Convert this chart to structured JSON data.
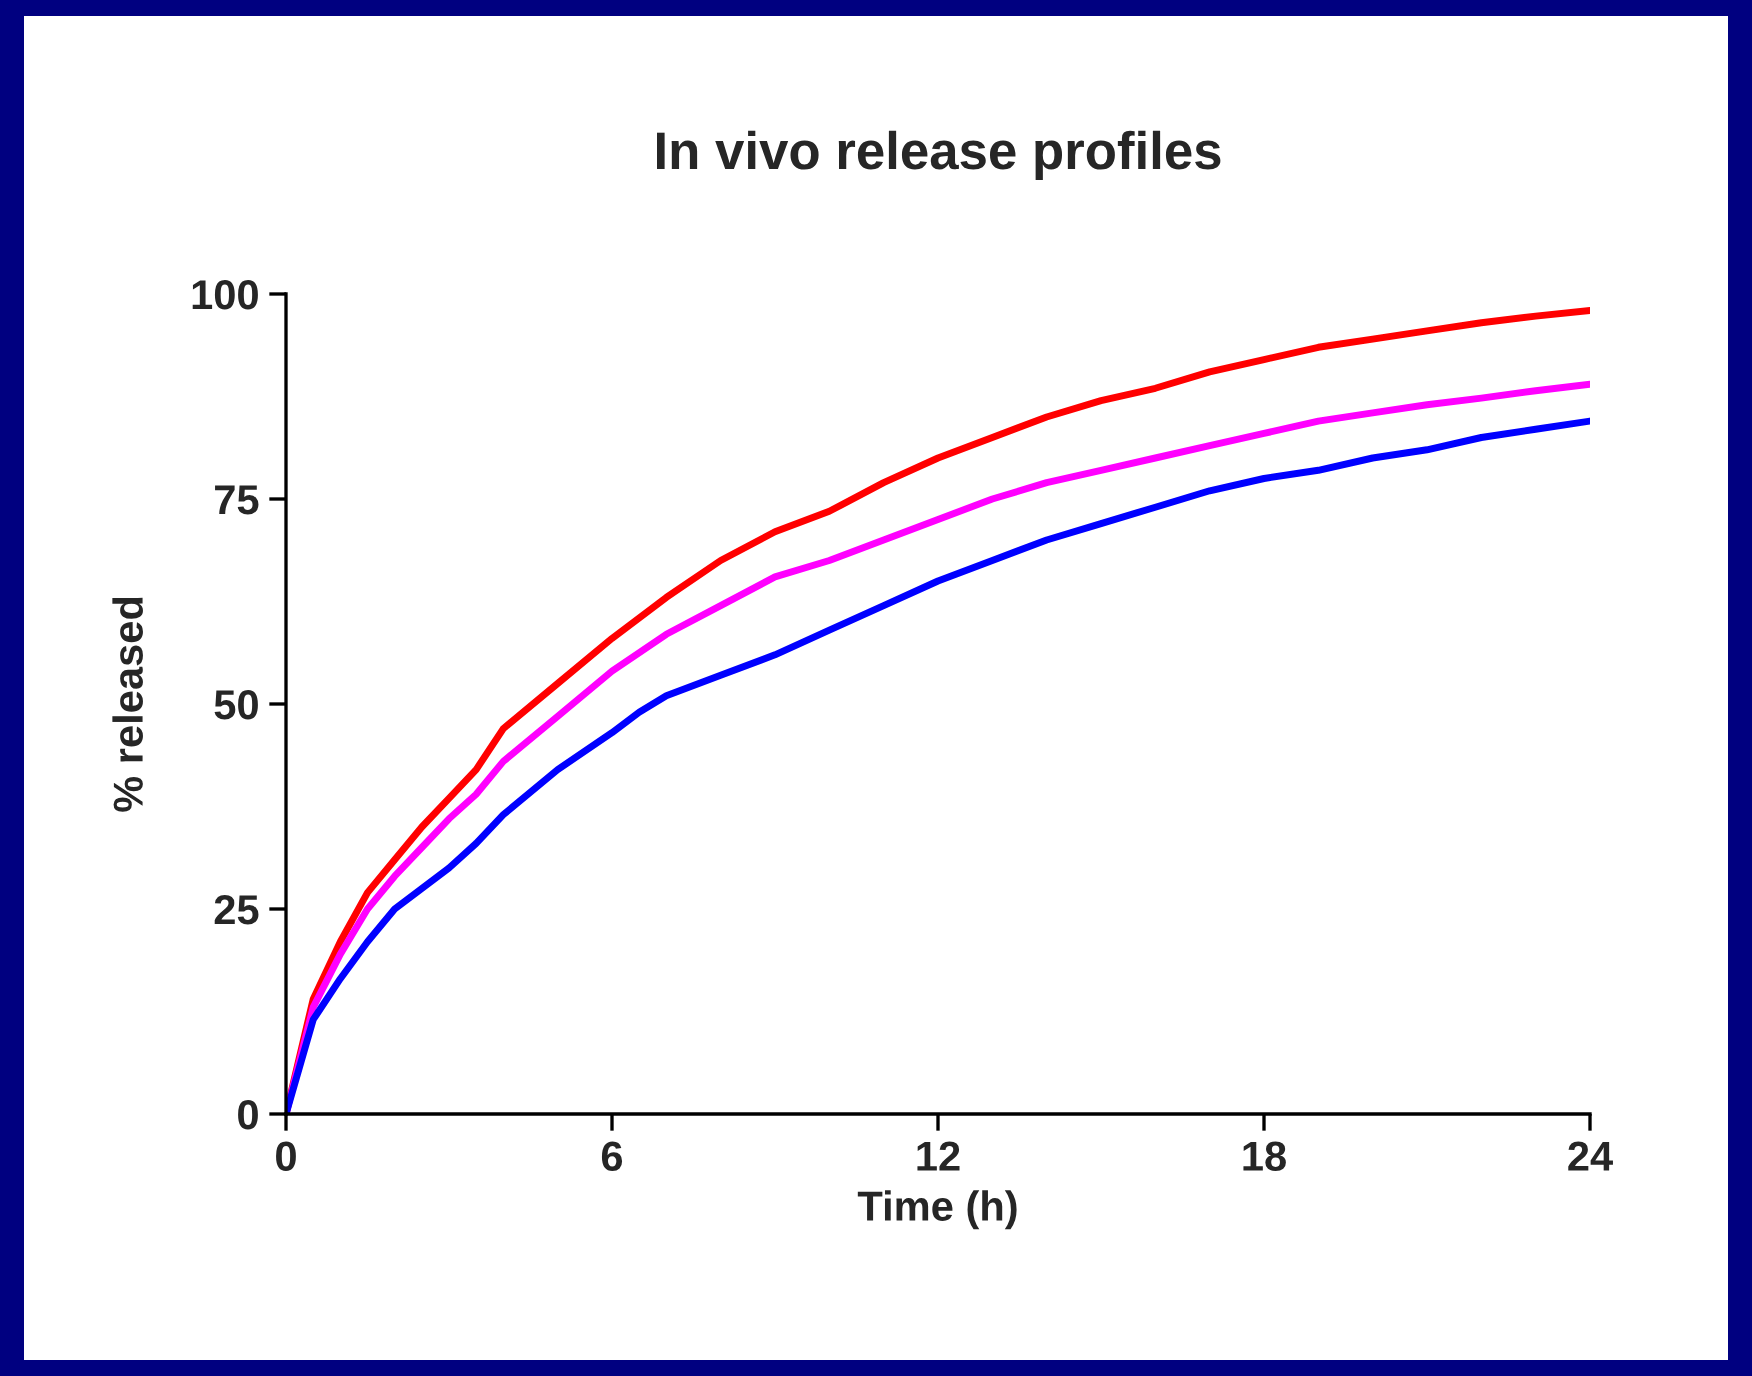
{
  "chart_data": {
    "type": "line",
    "title": "In vivo release profiles",
    "xlabel": "Time (h)",
    "ylabel": "% released",
    "xlim": [
      0,
      24
    ],
    "xticks": [
      0,
      6,
      12,
      18,
      24
    ],
    "ylim": [
      0,
      100
    ],
    "yticks": [
      0,
      25,
      50,
      75,
      100
    ],
    "grid": false,
    "marker": "none",
    "line_style": "solid",
    "series": [
      {
        "color": "#ff0000",
        "x": [
          0,
          0.5,
          1,
          1.5,
          2,
          2.5,
          3,
          3.5,
          4,
          5,
          6,
          7,
          8,
          9,
          10,
          11,
          12,
          13,
          14,
          15,
          16,
          17,
          18,
          19,
          20,
          21,
          22,
          23,
          24
        ],
        "values": [
          0,
          14,
          21,
          27,
          31,
          35,
          38.5,
          42,
          47,
          52.5,
          58,
          63,
          67.5,
          71,
          73.5,
          77,
          80,
          82.5,
          85,
          87,
          88.5,
          90.5,
          92,
          93.5,
          94.5,
          95.5,
          96.5,
          97.3,
          98
        ]
      },
      {
        "color": "#ff00ff",
        "x": [
          0,
          0.5,
          1,
          1.5,
          2,
          2.5,
          3,
          3.5,
          4,
          5,
          6,
          7,
          8,
          9,
          10,
          11,
          12,
          13,
          14,
          15,
          16,
          17,
          18,
          19,
          20,
          21,
          22,
          23,
          24
        ],
        "values": [
          0,
          13,
          19.5,
          25,
          29,
          32.5,
          36,
          39,
          43,
          48.5,
          54,
          58.5,
          62,
          65.5,
          67.5,
          70,
          72.5,
          75,
          77,
          78.5,
          80,
          81.5,
          83,
          84.5,
          85.5,
          86.5,
          87.3,
          88.2,
          89
        ]
      },
      {
        "color": "#0000ff",
        "x": [
          0,
          0.5,
          1,
          1.5,
          2,
          2.5,
          3,
          3.5,
          4,
          5,
          6,
          6.5,
          7,
          8,
          9,
          10,
          11,
          12,
          13,
          14,
          15,
          16,
          17,
          18,
          19,
          20,
          21,
          22,
          23,
          24
        ],
        "values": [
          0,
          11.5,
          16.5,
          21,
          25,
          27.5,
          30,
          33,
          36.5,
          42,
          46.5,
          49,
          51,
          53.5,
          56,
          59,
          62,
          65,
          67.5,
          70,
          72,
          74,
          76,
          77.5,
          78.5,
          80,
          81,
          82.5,
          83.5,
          84.5
        ]
      }
    ]
  }
}
